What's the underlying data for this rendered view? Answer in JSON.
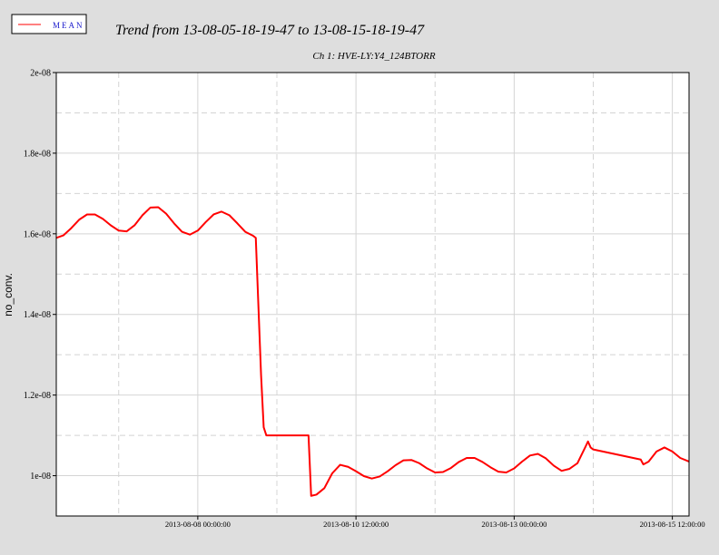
{
  "chart_data": {
    "type": "line",
    "title": "Trend from 13-08-05-18-19-47 to 13-08-15-18-19-47",
    "subtitle": "Ch 1: HVE-LY:Y4_124BTORR",
    "y_label": "no_conv.",
    "legend": "top-left",
    "grid": true,
    "xlim": [
      "2013-08-05 18:19:47",
      "2013-08-15 18:19:47"
    ],
    "xticks": [
      "2013-08-08 00:00:00",
      "2013-08-10 12:00:00",
      "2013-08-13 00:00:00",
      "2013-08-15 12:00:00"
    ],
    "xticks_minor": [
      "2013-08-06 18:00:00",
      "2013-08-09 06:00:00",
      "2013-08-11 18:00:00",
      "2013-08-14 06:00:00"
    ],
    "ylim": [
      9e-09,
      2e-08
    ],
    "yticks": [
      {
        "value": 1e-08,
        "label": "1e-08"
      },
      {
        "value": 1.2e-08,
        "label": "1.2e-08"
      },
      {
        "value": 1.4e-08,
        "label": "1.4e-08"
      },
      {
        "value": 1.6e-08,
        "label": "1.6e-08"
      },
      {
        "value": 1.8e-08,
        "label": "1.8e-08"
      },
      {
        "value": 2e-08,
        "label": "2e-08"
      }
    ],
    "yticks_minor": [
      1.1e-08,
      1.3e-08,
      1.5e-08,
      1.7e-08,
      1.9e-08
    ],
    "x": [
      "2013-08-05 18:19:47",
      "2013-08-05 21:00:00",
      "2013-08-06 00:00:00",
      "2013-08-06 03:00:00",
      "2013-08-06 06:00:00",
      "2013-08-06 09:00:00",
      "2013-08-06 12:00:00",
      "2013-08-06 15:00:00",
      "2013-08-06 18:00:00",
      "2013-08-06 21:00:00",
      "2013-08-07 00:00:00",
      "2013-08-07 03:00:00",
      "2013-08-07 06:00:00",
      "2013-08-07 09:00:00",
      "2013-08-07 12:00:00",
      "2013-08-07 15:00:00",
      "2013-08-07 18:00:00",
      "2013-08-07 21:00:00",
      "2013-08-08 00:00:00",
      "2013-08-08 03:00:00",
      "2013-08-08 06:00:00",
      "2013-08-08 09:00:00",
      "2013-08-08 12:00:00",
      "2013-08-08 15:00:00",
      "2013-08-08 18:00:00",
      "2013-08-08 21:00:00",
      "2013-08-08 22:00:00",
      "2013-08-08 23:00:00",
      "2013-08-09 00:00:00",
      "2013-08-09 01:00:00",
      "2013-08-09 02:00:00",
      "2013-08-09 18:00:00",
      "2013-08-09 19:00:00",
      "2013-08-09 21:00:00",
      "2013-08-10 00:00:00",
      "2013-08-10 03:00:00",
      "2013-08-10 06:00:00",
      "2013-08-10 09:00:00",
      "2013-08-10 12:00:00",
      "2013-08-10 15:00:00",
      "2013-08-10 18:00:00",
      "2013-08-10 21:00:00",
      "2013-08-11 00:00:00",
      "2013-08-11 03:00:00",
      "2013-08-11 06:00:00",
      "2013-08-11 09:00:00",
      "2013-08-11 12:00:00",
      "2013-08-11 15:00:00",
      "2013-08-11 18:00:00",
      "2013-08-11 21:00:00",
      "2013-08-12 00:00:00",
      "2013-08-12 03:00:00",
      "2013-08-12 06:00:00",
      "2013-08-12 09:00:00",
      "2013-08-12 12:00:00",
      "2013-08-12 15:00:00",
      "2013-08-12 18:00:00",
      "2013-08-12 21:00:00",
      "2013-08-13 00:00:00",
      "2013-08-13 03:00:00",
      "2013-08-13 06:00:00",
      "2013-08-13 09:00:00",
      "2013-08-13 12:00:00",
      "2013-08-13 15:00:00",
      "2013-08-13 18:00:00",
      "2013-08-13 21:00:00",
      "2013-08-14 00:00:00",
      "2013-08-14 03:00:00",
      "2013-08-14 04:00:00",
      "2013-08-14 05:00:00",
      "2013-08-14 06:00:00",
      "2013-08-15 00:00:00",
      "2013-08-15 01:00:00",
      "2013-08-15 03:00:00",
      "2013-08-15 06:00:00",
      "2013-08-15 09:00:00",
      "2013-08-15 12:00:00",
      "2013-08-15 15:00:00",
      "2013-08-15 18:00:00",
      "2013-08-15 18:19:47"
    ],
    "series": [
      {
        "name": "MEAN",
        "color": "#ff0000",
        "values": [
          1.59e-08,
          1.596e-08,
          1.614e-08,
          1.635e-08,
          1.648e-08,
          1.648e-08,
          1.637e-08,
          1.621e-08,
          1.608e-08,
          1.606e-08,
          1.621e-08,
          1.646e-08,
          1.665e-08,
          1.666e-08,
          1.65e-08,
          1.626e-08,
          1.605e-08,
          1.598e-08,
          1.608e-08,
          1.629e-08,
          1.648e-08,
          1.655e-08,
          1.646e-08,
          1.626e-08,
          1.605e-08,
          1.595e-08,
          1.59e-08,
          1.42e-08,
          1.25e-08,
          1.12e-08,
          1.1e-08,
          1.1e-08,
          9.5e-09,
          9.53e-09,
          9.69e-09,
          1.006e-08,
          1.027e-08,
          1.022e-08,
          1.011e-08,
          9.99e-09,
          9.93e-09,
          9.98e-09,
          1.011e-08,
          1.026e-08,
          1.038e-08,
          1.039e-08,
          1.031e-08,
          1.018e-08,
          1.008e-08,
          1.009e-08,
          1.019e-08,
          1.034e-08,
          1.044e-08,
          1.044e-08,
          1.034e-08,
          1.021e-08,
          1.01e-08,
          1.008e-08,
          1.018e-08,
          1.035e-08,
          1.05e-08,
          1.054e-08,
          1.043e-08,
          1.025e-08,
          1.012e-08,
          1.017e-08,
          1.031e-08,
          1.071e-08,
          1.085e-08,
          1.07e-08,
          1.065e-08,
          1.04e-08,
          1.028e-08,
          1.035e-08,
          1.06e-08,
          1.07e-08,
          1.06e-08,
          1.044e-08,
          1.036e-08,
          1.035e-08
        ]
      }
    ]
  }
}
